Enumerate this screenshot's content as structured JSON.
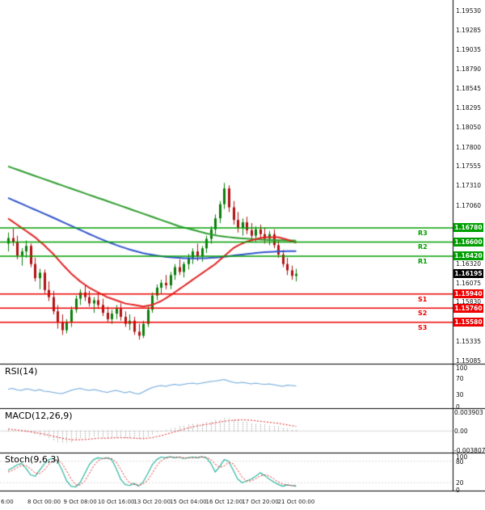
{
  "chart_data": {
    "type": "candlestick",
    "ylim": [
      1.1495,
      1.196
    ],
    "legend_position": "none",
    "grid": false,
    "main": {
      "price_ticks": [
        "1.19530",
        "1.19285",
        "1.19035",
        "1.18790",
        "1.18545",
        "1.18295",
        "1.18050",
        "1.17800",
        "1.17555",
        "1.17310",
        "1.17060",
        "1.16320",
        "1.16075",
        "1.15830",
        "1.15335",
        "1.15085"
      ],
      "resistance_levels": [
        {
          "label": "R3",
          "price": "1.16780"
        },
        {
          "label": "R2",
          "price": "1.16600"
        },
        {
          "label": "R1",
          "price": "1.16420"
        }
      ],
      "support_levels": [
        {
          "label": "S1",
          "price": "1.15940"
        },
        {
          "label": "S2",
          "price": "1.15760"
        },
        {
          "label": "S3",
          "price": "1.15580"
        }
      ],
      "last_price": "1.16195",
      "candles": [
        [
          1.1658,
          1.1672,
          1.1648,
          1.1665
        ],
        [
          1.1665,
          1.1677,
          1.1655,
          1.166
        ],
        [
          1.166,
          1.1668,
          1.1638,
          1.1643
        ],
        [
          1.1643,
          1.1652,
          1.163,
          1.1648
        ],
        [
          1.1648,
          1.1662,
          1.164,
          1.1655
        ],
        [
          1.1655,
          1.1658,
          1.1628,
          1.1632
        ],
        [
          1.1632,
          1.164,
          1.161,
          1.1614
        ],
        [
          1.1614,
          1.1626,
          1.16,
          1.1621
        ],
        [
          1.1621,
          1.1625,
          1.1595,
          1.1599
        ],
        [
          1.1599,
          1.161,
          1.1585,
          1.159
        ],
        [
          1.159,
          1.1598,
          1.1568,
          1.1572
        ],
        [
          1.1572,
          1.158,
          1.155,
          1.1558
        ],
        [
          1.1558,
          1.1568,
          1.1542,
          1.1548
        ],
        [
          1.1548,
          1.1562,
          1.1544,
          1.1558
        ],
        [
          1.1558,
          1.1578,
          1.1552,
          1.1574
        ],
        [
          1.1574,
          1.1592,
          1.157,
          1.1588
        ],
        [
          1.1588,
          1.16,
          1.158,
          1.1596
        ],
        [
          1.1596,
          1.1605,
          1.1585,
          1.159
        ],
        [
          1.159,
          1.1598,
          1.1578,
          1.1582
        ],
        [
          1.1582,
          1.159,
          1.157,
          1.1586
        ],
        [
          1.1586,
          1.1595,
          1.1575,
          1.158
        ],
        [
          1.158,
          1.1588,
          1.1566,
          1.157
        ],
        [
          1.157,
          1.1578,
          1.1558,
          1.1562
        ],
        [
          1.1562,
          1.1574,
          1.1556,
          1.1569
        ],
        [
          1.1569,
          1.158,
          1.1562,
          1.1575
        ],
        [
          1.1575,
          1.1582,
          1.156,
          1.1565
        ],
        [
          1.1565,
          1.1572,
          1.1552,
          1.1556
        ],
        [
          1.1556,
          1.1568,
          1.1548,
          1.156
        ],
        [
          1.156,
          1.1565,
          1.1542,
          1.1546
        ],
        [
          1.1546,
          1.1556,
          1.1536,
          1.1541
        ],
        [
          1.1541,
          1.156,
          1.1538,
          1.1556
        ],
        [
          1.1556,
          1.1578,
          1.1552,
          1.1574
        ],
        [
          1.1574,
          1.1596,
          1.157,
          1.1592
        ],
        [
          1.1592,
          1.1606,
          1.1586,
          1.1602
        ],
        [
          1.1602,
          1.1612,
          1.1594,
          1.1608
        ],
        [
          1.1608,
          1.1618,
          1.16,
          1.1605
        ],
        [
          1.1605,
          1.1622,
          1.16,
          1.1618
        ],
        [
          1.1618,
          1.1632,
          1.1612,
          1.1628
        ],
        [
          1.1628,
          1.1638,
          1.1618,
          1.1622
        ],
        [
          1.1622,
          1.1635,
          1.1615,
          1.1632
        ],
        [
          1.1632,
          1.1645,
          1.1625,
          1.164
        ],
        [
          1.164,
          1.1652,
          1.1632,
          1.1648
        ],
        [
          1.1648,
          1.1658,
          1.1636,
          1.1642
        ],
        [
          1.1642,
          1.1655,
          1.1635,
          1.1652
        ],
        [
          1.1652,
          1.1668,
          1.1646,
          1.1664
        ],
        [
          1.1664,
          1.168,
          1.1658,
          1.1676
        ],
        [
          1.1676,
          1.1695,
          1.167,
          1.169
        ],
        [
          1.169,
          1.1712,
          1.1684,
          1.1708
        ],
        [
          1.1708,
          1.1735,
          1.1702,
          1.1728
        ],
        [
          1.1728,
          1.1732,
          1.1698,
          1.1704
        ],
        [
          1.1704,
          1.1712,
          1.1682,
          1.1688
        ],
        [
          1.1688,
          1.1698,
          1.1672,
          1.1678
        ],
        [
          1.1678,
          1.169,
          1.1668,
          1.1685
        ],
        [
          1.1685,
          1.1692,
          1.167,
          1.1675
        ],
        [
          1.1675,
          1.1684,
          1.1662,
          1.1668
        ],
        [
          1.1668,
          1.168,
          1.166,
          1.1676
        ],
        [
          1.1676,
          1.1682,
          1.1664,
          1.167
        ],
        [
          1.167,
          1.1678,
          1.1658,
          1.1664
        ],
        [
          1.1664,
          1.1674,
          1.1656,
          1.167
        ],
        [
          1.167,
          1.1676,
          1.1652,
          1.1656
        ],
        [
          1.1656,
          1.1662,
          1.164,
          1.1644
        ],
        [
          1.1644,
          1.165,
          1.1628,
          1.1632
        ],
        [
          1.1632,
          1.164,
          1.1618,
          1.1624
        ],
        [
          1.1624,
          1.163,
          1.1612,
          1.1617
        ],
        [
          1.1617,
          1.1626,
          1.161,
          1.16195
        ]
      ],
      "ma_slow_green": [
        1.1756,
        1.1754,
        1.1752,
        1.175,
        1.1748,
        1.17459,
        1.17439,
        1.17419,
        1.17399,
        1.17379,
        1.17359,
        1.17339,
        1.17319,
        1.17299,
        1.17279,
        1.17259,
        1.17239,
        1.17219,
        1.17199,
        1.17179,
        1.17159,
        1.1714,
        1.1712,
        1.171,
        1.1708,
        1.1706,
        1.1704,
        1.1702,
        1.17,
        1.1698,
        1.1696,
        1.1694,
        1.1692,
        1.169,
        1.1688,
        1.1686,
        1.1684,
        1.1682,
        1.168,
        1.16785,
        1.1677,
        1.16755,
        1.1674,
        1.16725,
        1.1671,
        1.16698,
        1.16686,
        1.16675,
        1.16668,
        1.16662,
        1.16656,
        1.16651,
        1.16646,
        1.16642,
        1.16638,
        1.16634,
        1.16631,
        1.16628,
        1.16626,
        1.16624,
        1.16622,
        1.16621,
        1.1662,
        1.16619,
        1.16618
      ],
      "ma_mid_blue": [
        1.1716,
        1.17135,
        1.1711,
        1.17085,
        1.1706,
        1.17035,
        1.1701,
        1.16985,
        1.1696,
        1.16935,
        1.1691,
        1.16884,
        1.16858,
        1.16832,
        1.16806,
        1.1678,
        1.16754,
        1.16728,
        1.16702,
        1.16677,
        1.16652,
        1.16629,
        1.16606,
        1.16584,
        1.16562,
        1.16542,
        1.16523,
        1.16505,
        1.16488,
        1.16473,
        1.16459,
        1.16447,
        1.16437,
        1.16428,
        1.1642,
        1.16413,
        1.16407,
        1.16402,
        1.16398,
        1.16395,
        1.16393,
        1.16392,
        1.16392,
        1.16393,
        1.16395,
        1.16398,
        1.16402,
        1.16407,
        1.16413,
        1.1642,
        1.16427,
        1.16434,
        1.16441,
        1.16448,
        1.16454,
        1.1646,
        1.16465,
        1.1647,
        1.16474,
        1.16477,
        1.1648,
        1.16482,
        1.16483,
        1.16484,
        1.16484
      ],
      "ma_fast_red": [
        1.169,
        1.1686,
        1.1682,
        1.1678,
        1.1674,
        1.167,
        1.1666,
        1.1661,
        1.1656,
        1.16505,
        1.1645,
        1.16385,
        1.1632,
        1.1626,
        1.162,
        1.1615,
        1.161,
        1.1606,
        1.1602,
        1.1599,
        1.1596,
        1.1593,
        1.159,
        1.1588,
        1.1586,
        1.1584,
        1.1582,
        1.1581,
        1.158,
        1.1579,
        1.1578,
        1.1579,
        1.158,
        1.15825,
        1.1585,
        1.15885,
        1.1592,
        1.1596,
        1.16,
        1.1604,
        1.1608,
        1.1612,
        1.1616,
        1.162,
        1.1624,
        1.1628,
        1.1632,
        1.1637,
        1.1642,
        1.1647,
        1.1652,
        1.16555,
        1.1658,
        1.16605,
        1.1662,
        1.16635,
        1.1665,
        1.16658,
        1.1666,
        1.1666,
        1.1666,
        1.16645,
        1.1663,
        1.1661,
        1.1659
      ]
    },
    "rsi": {
      "label": "RSI(14)",
      "scale": [
        {
          "text": "100",
          "v": 100
        },
        {
          "text": "70",
          "v": 70
        },
        {
          "text": "30",
          "v": 30
        },
        {
          "text": "0",
          "v": 0
        }
      ],
      "values": [
        43,
        45,
        41,
        40,
        44,
        42,
        39,
        42,
        38,
        37,
        35,
        33,
        32,
        36,
        40,
        43,
        45,
        42,
        40,
        42,
        40,
        37,
        35,
        38,
        40,
        37,
        34,
        37,
        33,
        31,
        36,
        42,
        47,
        50,
        52,
        50,
        53,
        55,
        53,
        55,
        57,
        58,
        56,
        58,
        60,
        62,
        63,
        65,
        67,
        63,
        60,
        58,
        60,
        58,
        56,
        58,
        56,
        55,
        56,
        54,
        52,
        50,
        53,
        52,
        51
      ]
    },
    "macd": {
      "label": "MACD(12,26,9)",
      "scale": [
        {
          "text": "0.003903",
          "v": 0.003903
        },
        {
          "text": "0.00",
          "v": 0
        },
        {
          "text": "-0.003807",
          "v": -0.003807
        }
      ],
      "histogram": [
        0.0002,
        0.0001,
        0.0,
        -0.0001,
        -0.0002,
        -0.0004,
        -0.0007,
        -0.0009,
        -0.0012,
        -0.0015,
        -0.0018,
        -0.0021,
        -0.0024,
        -0.0024,
        -0.0022,
        -0.0019,
        -0.0016,
        -0.0014,
        -0.0013,
        -0.0012,
        -0.0012,
        -0.0013,
        -0.0014,
        -0.0014,
        -0.0013,
        -0.0013,
        -0.0014,
        -0.0014,
        -0.0015,
        -0.0016,
        -0.0015,
        -0.0012,
        -0.0008,
        -0.0004,
        -0.0001,
        0.0002,
        0.0005,
        0.0008,
        0.001,
        0.0012,
        0.0013,
        0.0014,
        0.0015,
        0.0016,
        0.0017,
        0.0019,
        0.0021,
        0.0023,
        0.0025,
        0.0025,
        0.0024,
        0.0022,
        0.002,
        0.0018,
        0.0016,
        0.0015,
        0.0014,
        0.0013,
        0.0012,
        0.0011,
        0.0009,
        0.0007,
        0.0005,
        0.0003,
        0.0002
      ],
      "signal": [
        0.0004,
        0.0003,
        0.0002,
        0.0001,
        0.0,
        -0.00015,
        -0.0003,
        -0.00045,
        -0.0006,
        -0.0008,
        -0.001,
        -0.0012,
        -0.0014,
        -0.00155,
        -0.0017,
        -0.0017,
        -0.0017,
        -0.00165,
        -0.0016,
        -0.0015,
        -0.0014,
        -0.0014,
        -0.0014,
        -0.00135,
        -0.0013,
        -0.0013,
        -0.0013,
        -0.00135,
        -0.0014,
        -0.00145,
        -0.0015,
        -0.0014,
        -0.0013,
        -0.0011,
        -0.0009,
        -0.00065,
        -0.0004,
        -0.00015,
        0.0001,
        0.00035,
        0.0006,
        0.0008,
        0.001,
        0.00115,
        0.0013,
        0.00145,
        0.0016,
        0.00175,
        0.0019,
        0.002,
        0.0021,
        0.00215,
        0.0022,
        0.00215,
        0.0021,
        0.002,
        0.0019,
        0.0018,
        0.0017,
        0.0016,
        0.0015,
        0.00135,
        0.0012,
        0.00105,
        0.0009
      ]
    },
    "stoch": {
      "label": "Stoch(9,6,3)",
      "scale": [
        {
          "text": "100",
          "v": 100
        },
        {
          "text": "80",
          "v": 80
        },
        {
          "text": "20",
          "v": 20
        },
        {
          "text": "0",
          "v": 0
        }
      ],
      "k": [
        55,
        62,
        70,
        74,
        60,
        42,
        38,
        55,
        72,
        85,
        88,
        80,
        55,
        25,
        10,
        8,
        20,
        45,
        70,
        85,
        90,
        88,
        90,
        85,
        60,
        30,
        15,
        12,
        18,
        10,
        22,
        45,
        70,
        85,
        92,
        90,
        93,
        90,
        92,
        88,
        90,
        92,
        90,
        93,
        90,
        75,
        50,
        65,
        85,
        80,
        55,
        30,
        20,
        25,
        30,
        38,
        48,
        40,
        30,
        22,
        15,
        10,
        14,
        12,
        10
      ],
      "d": [
        50,
        55,
        62,
        69,
        68,
        59,
        47,
        45,
        55,
        71,
        82,
        84,
        74,
        53,
        30,
        14,
        13,
        24,
        45,
        67,
        82,
        88,
        89,
        88,
        78,
        58,
        35,
        19,
        15,
        13,
        17,
        26,
        46,
        67,
        82,
        89,
        92,
        91,
        92,
        90,
        90,
        90,
        91,
        92,
        91,
        86,
        72,
        63,
        67,
        77,
        73,
        55,
        35,
        25,
        25,
        31,
        39,
        42,
        39,
        31,
        22,
        16,
        13,
        12,
        12
      ]
    },
    "time_axis": [
      {
        "text": "6:00",
        "i": 0
      },
      {
        "text": "8 Oct 00:00",
        "i": 8
      },
      {
        "text": "9 Oct 08:00",
        "i": 16
      },
      {
        "text": "10 Oct 16:00",
        "i": 24
      },
      {
        "text": "13 Oct 20:00",
        "i": 32
      },
      {
        "text": "15 Oct 04:00",
        "i": 40
      },
      {
        "text": "16 Oct 12:00",
        "i": 48
      },
      {
        "text": "17 Oct 20:00",
        "i": 56
      },
      {
        "text": "21 Oct 00:00",
        "i": 64
      }
    ],
    "colors": {
      "up_candle": "#0a7d0a",
      "down_candle": "#b01212",
      "ma_fast": "#e32424",
      "ma_mid": "#3355cc",
      "ma_slow": "#2f9e2f",
      "resistance": "#009e00",
      "support": "#ee0000",
      "last_price_tag": "#000000",
      "tag_text": "#ffffff",
      "rsi_line": "#6fa8dc",
      "macd_hist": "#8c8c8c",
      "macd_signal": "#e32424",
      "stoch_k": "#2bb5a0",
      "stoch_d": "#e32424",
      "axis_text": "#111111",
      "separator": "#000000"
    }
  }
}
